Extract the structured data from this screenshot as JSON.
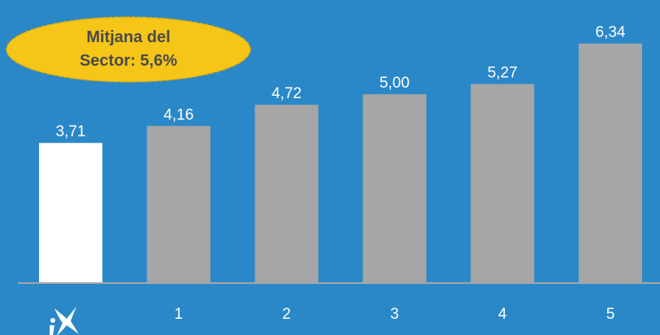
{
  "chart_data": {
    "type": "bar",
    "categories": [
      "logo",
      "1",
      "2",
      "3",
      "4",
      "5"
    ],
    "values": [
      3.71,
      4.16,
      4.72,
      5.0,
      5.27,
      6.34
    ],
    "value_labels": [
      "3,71",
      "4,16",
      "4,72",
      "5,00",
      "5,27",
      "6,34"
    ],
    "title": "",
    "xlabel": "",
    "ylabel": "",
    "ylim": [
      0,
      7
    ],
    "grid": false,
    "highlight_index": 0,
    "annotation": {
      "line1": "Mitjana del",
      "line2": "Sector: 5,6%"
    }
  },
  "colors": {
    "background": "#2b88c8",
    "bar": "#a6a6a6",
    "bar_highlight": "#ffffff",
    "axis": "#a6a6a6",
    "badge_fill": "#f5c518",
    "badge_text": "#4a4a4a"
  },
  "icons": {
    "first_category": "star-logo-icon"
  }
}
